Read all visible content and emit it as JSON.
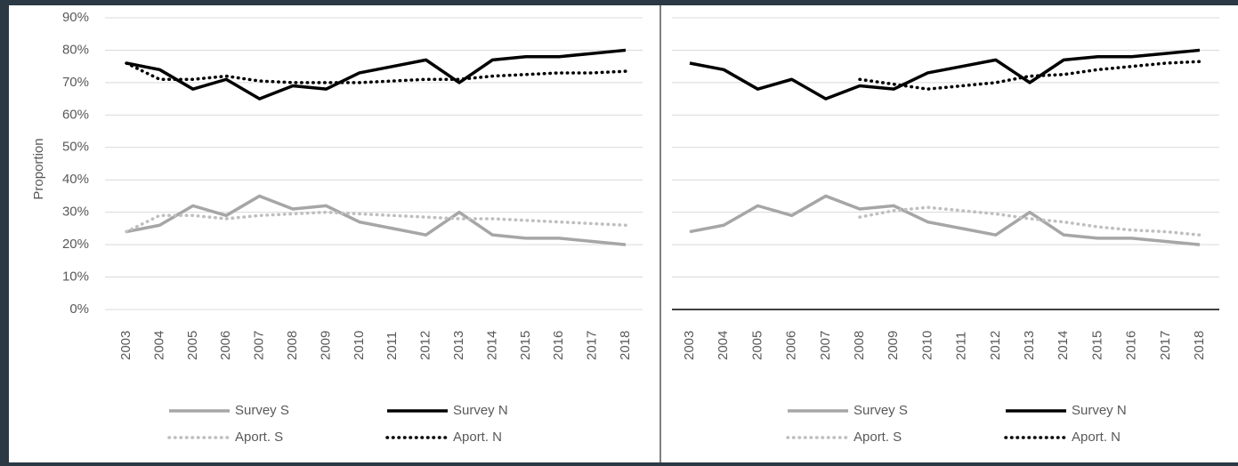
{
  "chart_data": [
    {
      "type": "line",
      "y_label": "Proportion",
      "x": [
        "2003",
        "2004",
        "2005",
        "2006",
        "2007",
        "2008",
        "2009",
        "2010",
        "2011",
        "2012",
        "2013",
        "2014",
        "2015",
        "2016",
        "2017",
        "2018"
      ],
      "ylim": [
        0,
        90
      ],
      "yticks": [
        {
          "value": 0,
          "label": "0%"
        },
        {
          "value": 10,
          "label": "10%"
        },
        {
          "value": 20,
          "label": "20%"
        },
        {
          "value": 30,
          "label": "30%"
        },
        {
          "value": 40,
          "label": "40%"
        },
        {
          "value": 50,
          "label": "50%"
        },
        {
          "value": 60,
          "label": "60%"
        },
        {
          "value": 70,
          "label": "70%"
        },
        {
          "value": 80,
          "label": "80%"
        },
        {
          "value": 90,
          "label": "90%"
        }
      ],
      "grid": true,
      "series": [
        {
          "name": "Survey S",
          "color": "#a6a6a6",
          "style": "solid",
          "values": [
            24,
            26,
            32,
            29,
            35,
            31,
            32,
            27,
            25,
            23,
            30,
            23,
            22,
            22,
            21,
            20
          ]
        },
        {
          "name": "Survey N",
          "color": "#000000",
          "style": "solid",
          "values": [
            76,
            74,
            68,
            71,
            65,
            69,
            68,
            73,
            75,
            77,
            70,
            77,
            78,
            78,
            79,
            80
          ]
        },
        {
          "name": "Aport. S",
          "color": "#bfbfbf",
          "style": "dotted",
          "values": [
            24,
            29,
            29,
            28,
            29,
            29.5,
            30,
            29.5,
            29,
            28.5,
            28,
            28,
            27.5,
            27,
            26.5,
            26
          ]
        },
        {
          "name": "Aport. N",
          "color": "#000000",
          "style": "dotted",
          "values": [
            76,
            71,
            71,
            72,
            70.5,
            70,
            70,
            70,
            70.5,
            71,
            71,
            72,
            72.5,
            73,
            73,
            73.5
          ]
        }
      ]
    },
    {
      "type": "line",
      "x": [
        "2003",
        "2004",
        "2005",
        "2006",
        "2007",
        "2008",
        "2009",
        "2010",
        "2011",
        "2012",
        "2013",
        "2014",
        "2015",
        "2016",
        "2017",
        "2018"
      ],
      "ylim": [
        0,
        90
      ],
      "yticks": [
        0,
        10,
        20,
        30,
        40,
        50,
        60,
        70,
        80,
        90
      ],
      "grid": true,
      "series": [
        {
          "name": "Survey S",
          "color": "#a6a6a6",
          "style": "solid",
          "values": [
            24,
            26,
            32,
            29,
            35,
            31,
            32,
            27,
            25,
            23,
            30,
            23,
            22,
            22,
            21,
            20
          ]
        },
        {
          "name": "Survey N",
          "color": "#000000",
          "style": "solid",
          "values": [
            76,
            74,
            68,
            71,
            65,
            69,
            68,
            73,
            75,
            77,
            70,
            77,
            78,
            78,
            79,
            80
          ]
        },
        {
          "name": "Aport. S",
          "color": "#bfbfbf",
          "style": "dotted",
          "values": [
            null,
            null,
            null,
            null,
            null,
            28.5,
            30.5,
            31.5,
            30.5,
            29.5,
            28,
            27,
            25.5,
            24.5,
            24,
            23
          ]
        },
        {
          "name": "Aport. N",
          "color": "#000000",
          "style": "dotted",
          "values": [
            null,
            null,
            null,
            null,
            null,
            71,
            69.5,
            68,
            69,
            70,
            72,
            72.5,
            74,
            75,
            76,
            76.5
          ]
        }
      ]
    }
  ]
}
